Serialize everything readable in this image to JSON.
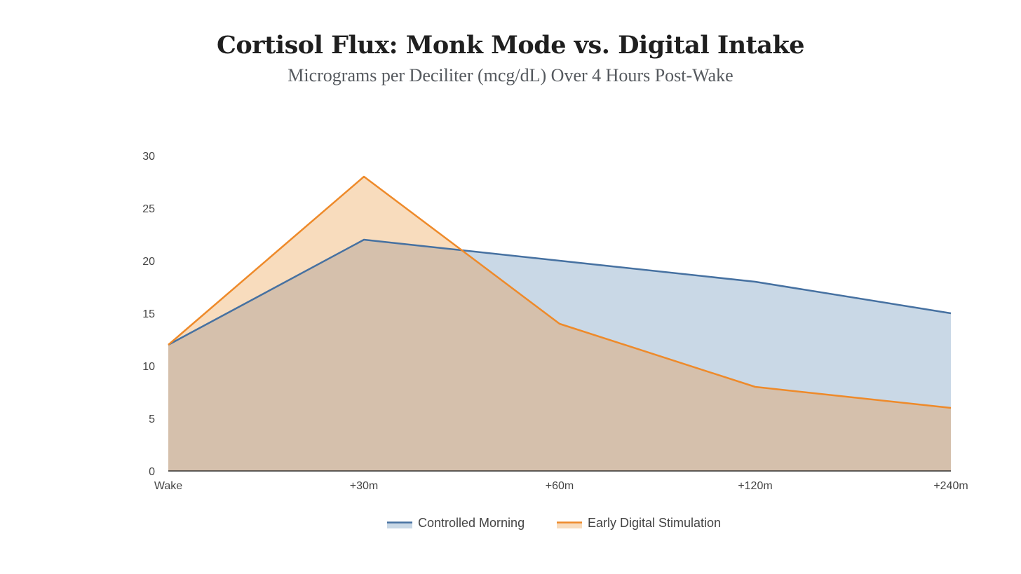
{
  "chart_data": {
    "type": "area",
    "title": "Cortisol Flux: Monk Mode vs. Digital Intake",
    "subtitle": "Micrograms per Deciliter (mcg/dL) Over 4 Hours Post-Wake",
    "categories": [
      "Wake",
      "+30m",
      "+60m",
      "+120m",
      "+240m"
    ],
    "series": [
      {
        "name": "Controlled Morning",
        "values": [
          12,
          22,
          20,
          18,
          15
        ],
        "color": "#4671a1",
        "fill": "#c9d8e6"
      },
      {
        "name": "Early Digital Stimulation",
        "values": [
          12,
          28,
          14,
          8,
          6
        ],
        "color": "#ee8a2a",
        "fill": "#f8dcbd"
      }
    ],
    "overlap_fill": "#d5c0ac",
    "ylim": [
      0,
      30
    ],
    "yticks": [
      0,
      5,
      10,
      15,
      20,
      25,
      30
    ],
    "xlabel": "",
    "ylabel": "",
    "grid": false,
    "legend_position": "bottom-center"
  }
}
